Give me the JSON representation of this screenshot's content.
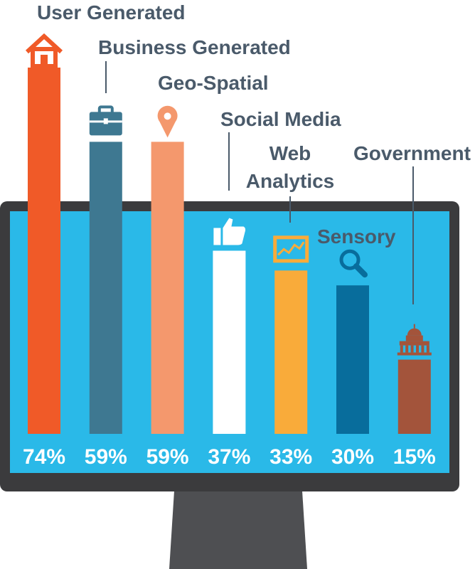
{
  "chart_data": {
    "type": "bar",
    "categories": [
      "User Generated",
      "Business Generated",
      "Geo-Spatial",
      "Social Media",
      "Web Analytics",
      "Sensory",
      "Government"
    ],
    "category_lines": [
      [
        "User Generated"
      ],
      [
        "Business Generated"
      ],
      [
        "Geo-Spatial"
      ],
      [
        "Social Media"
      ],
      [
        "Web",
        "Analytics"
      ],
      [
        "Sensory"
      ],
      [
        "Government"
      ]
    ],
    "values": [
      74,
      59,
      59,
      37,
      33,
      30,
      15
    ],
    "value_labels": [
      "74%",
      "59%",
      "59%",
      "37%",
      "33%",
      "30%",
      "15%"
    ],
    "icons": [
      "house-icon",
      "briefcase-icon",
      "map-pin-icon",
      "thumbs-up-icon",
      "analytics-chart-icon",
      "magnifier-icon",
      "capitol-building-icon"
    ],
    "colors": [
      "#f05a28",
      "#3e7891",
      "#f4986d",
      "#ffffff",
      "#f9ab3a",
      "#086d9c",
      "#a3543b"
    ],
    "ylim": [
      0,
      100
    ],
    "title": "",
    "xlabel": "",
    "ylabel": "",
    "grid": false,
    "legend": "none"
  },
  "colors": {
    "screen": "#2ab9e8",
    "bezel": "#3b3b3d",
    "stand": "#4e4f52",
    "label": "#4a5a6a",
    "leader": "#4a5a6a"
  }
}
